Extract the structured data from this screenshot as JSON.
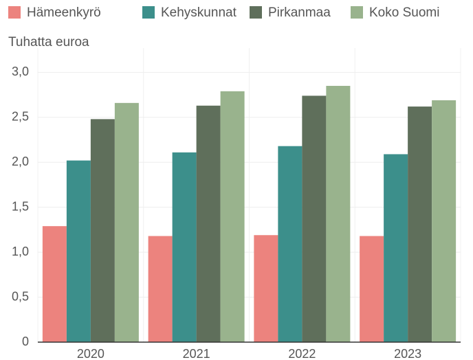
{
  "chart_data": {
    "type": "bar",
    "y_label": "Tuhatta euroa",
    "categories": [
      "2020",
      "2021",
      "2022",
      "2023"
    ],
    "series": [
      {
        "name": "Hämeenkyrö",
        "color": "#ec837e",
        "values": [
          1.29,
          1.18,
          1.19,
          1.18
        ]
      },
      {
        "name": "Kehyskunnat",
        "color": "#3c8f8b",
        "values": [
          2.02,
          2.11,
          2.18,
          2.09
        ]
      },
      {
        "name": "Pirkanmaa",
        "color": "#5f6f5b",
        "values": [
          2.48,
          2.63,
          2.74,
          2.62
        ]
      },
      {
        "name": "Koko Suomi",
        "color": "#99b38d",
        "values": [
          2.66,
          2.79,
          2.85,
          2.69
        ]
      }
    ],
    "ylim": [
      0,
      3.27
    ],
    "yticks": [
      0,
      {
        "value": 0.5,
        "label": "0,5"
      },
      {
        "value": 1,
        "label": "1,0"
      },
      {
        "value": 1.5,
        "label": "1,5"
      },
      {
        "value": 2,
        "label": "2,0"
      },
      {
        "value": 2.5,
        "label": "2,5"
      },
      {
        "value": 3,
        "label": "3,0"
      }
    ],
    "grid": true,
    "legend": "top"
  }
}
